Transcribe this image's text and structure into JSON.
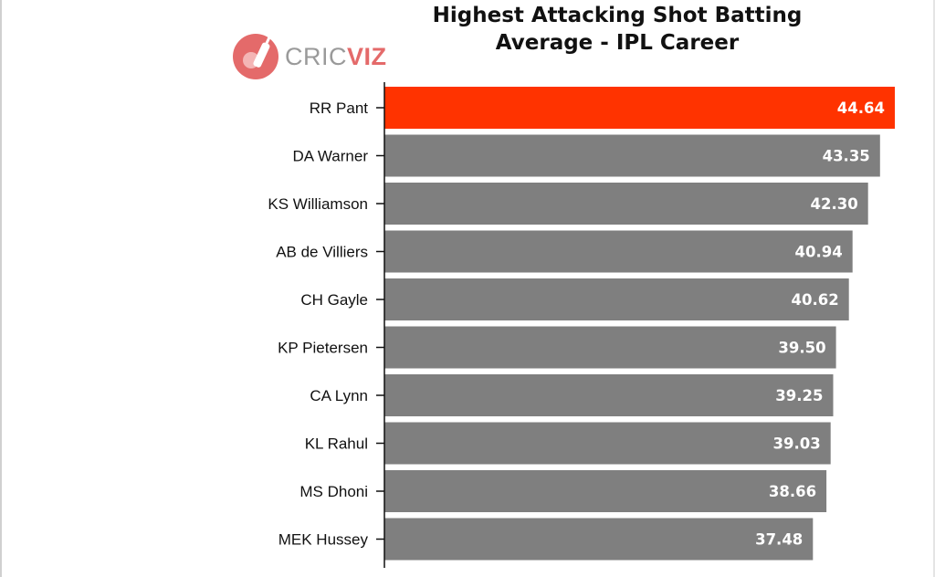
{
  "logo": {
    "text_part1": "CRIC",
    "text_part2": "VIZ",
    "icon": "cricket-bat-ball-icon"
  },
  "colors": {
    "highlight": "#ff3300",
    "bar": "#7f7f7f",
    "axis": "#111111",
    "value_text": "#ffffff",
    "logo_red": "#e46a6a",
    "logo_gray": "#9a9a9a"
  },
  "chart_data": {
    "type": "bar",
    "orientation": "horizontal",
    "title_lines": [
      "Highest Attacking Shot Batting",
      "Average - IPL Career"
    ],
    "title": "Highest Attacking Shot Batting Average - IPL Career",
    "xlabel": "",
    "ylabel": "",
    "categories": [
      "RR Pant",
      "DA Warner",
      "KS Williamson",
      "AB de Villiers",
      "CH Gayle",
      "KP Pietersen",
      "CA Lynn",
      "KL Rahul",
      "MS Dhoni",
      "MEK Hussey"
    ],
    "values": [
      44.64,
      43.35,
      42.3,
      40.94,
      40.62,
      39.5,
      39.25,
      39.03,
      38.66,
      37.48
    ],
    "value_labels": [
      "44.64",
      "43.35",
      "42.30",
      "40.94",
      "40.62",
      "39.50",
      "39.25",
      "39.03",
      "38.66",
      "37.48"
    ],
    "highlight_index": 0,
    "xlim": [
      0,
      44.64
    ],
    "grid": false,
    "legend": "none"
  }
}
